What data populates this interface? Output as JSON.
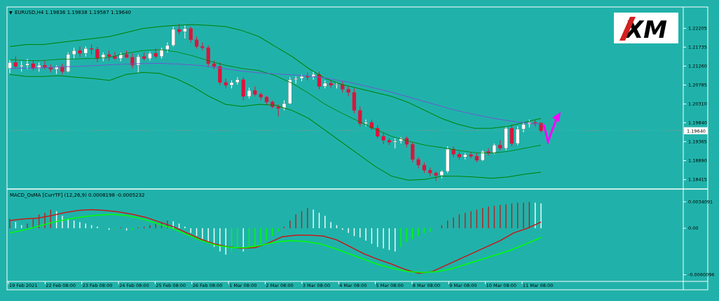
{
  "colors": {
    "background": "#20b2aa",
    "panel_border": "#ffffff",
    "bull_candle": "#ffffff",
    "bear_candle": "#dc143c",
    "bollinger": "#008000",
    "ma": "#6a5acd",
    "macd_line": "#ff0000",
    "signal_line": "#00ff00",
    "hist_up": "#ffffff",
    "hist_down": "#00ff00",
    "hist_up_red": "#b22222",
    "arrow": "#ff00ff"
  },
  "logo": {
    "text": "XM"
  },
  "chart_data": [
    {
      "type": "candlestick",
      "title": "EURUSD,H4  1.19836 1.19838 1.19587 1.19640",
      "y_ticks": [
        "1.22205",
        "1.21735",
        "1.21260",
        "1.20785",
        "1.20310",
        "1.19840",
        "1.19365",
        "1.18890",
        "1.18415"
      ],
      "y_tick_values": [
        1.22205,
        1.21735,
        1.2126,
        1.20785,
        1.2031,
        1.1984,
        1.19365,
        1.1889,
        1.18415
      ],
      "ylim": [
        1.1825,
        1.2253
      ],
      "current_price": "1.19640",
      "x_ticks": [
        "19 Feb 2021",
        "22 Feb 08:00",
        "23 Feb 08:00",
        "24 Feb 08:00",
        "25 Feb 08:00",
        "26 Feb 08:00",
        "1 Mar 08:00",
        "2 Mar 08:00",
        "3 Mar 08:00",
        "4 Mar 08:00",
        "5 Mar 08:00",
        "8 Mar 08:00",
        "9 Mar 08:00",
        "10 Mar 08:00",
        "11 Mar 08:00"
      ],
      "ohlc": [
        [
          1.212,
          1.2142,
          1.2108,
          1.2135
        ],
        [
          1.2135,
          1.215,
          1.212,
          1.2125
        ],
        [
          1.2125,
          1.2138,
          1.2112,
          1.2128
        ],
        [
          1.2128,
          1.2144,
          1.2118,
          1.2132
        ],
        [
          1.2132,
          1.214,
          1.2115,
          1.212
        ],
        [
          1.212,
          1.2135,
          1.2112,
          1.2128
        ],
        [
          1.2128,
          1.214,
          1.2118,
          1.2122
        ],
        [
          1.2122,
          1.213,
          1.211,
          1.2118
        ],
        [
          1.2118,
          1.2128,
          1.2106,
          1.2125
        ],
        [
          1.2125,
          1.2132,
          1.2105,
          1.2112
        ],
        [
          1.2112,
          1.216,
          1.211,
          1.2155
        ],
        [
          1.2155,
          1.2172,
          1.2145,
          1.2165
        ],
        [
          1.2165,
          1.2175,
          1.215,
          1.2158
        ],
        [
          1.2158,
          1.2175,
          1.215,
          1.217
        ],
        [
          1.217,
          1.218,
          1.2155,
          1.2168
        ],
        [
          1.2168,
          1.2175,
          1.2135,
          1.2145
        ],
        [
          1.2145,
          1.216,
          1.2138,
          1.2155
        ],
        [
          1.2155,
          1.2165,
          1.214,
          1.215
        ],
        [
          1.215,
          1.2162,
          1.2142,
          1.2145
        ],
        [
          1.2145,
          1.216,
          1.2138,
          1.2155
        ],
        [
          1.2155,
          1.2165,
          1.2145,
          1.2148
        ],
        [
          1.2148,
          1.2158,
          1.212,
          1.2128
        ],
        [
          1.2128,
          1.2155,
          1.211,
          1.215
        ],
        [
          1.215,
          1.216,
          1.214,
          1.2145
        ],
        [
          1.2145,
          1.2162,
          1.214,
          1.2158
        ],
        [
          1.2158,
          1.217,
          1.2145,
          1.215
        ],
        [
          1.215,
          1.2172,
          1.2145,
          1.2168
        ],
        [
          1.2168,
          1.2185,
          1.216,
          1.2178
        ],
        [
          1.2178,
          1.2225,
          1.2175,
          1.2218
        ],
        [
          1.2218,
          1.2232,
          1.2205,
          1.2212
        ],
        [
          1.2212,
          1.2228,
          1.2195,
          1.222
        ],
        [
          1.222,
          1.2225,
          1.2185,
          1.2192
        ],
        [
          1.2192,
          1.22,
          1.217,
          1.2175
        ],
        [
          1.2175,
          1.2185,
          1.2165,
          1.2172
        ],
        [
          1.2172,
          1.2178,
          1.2125,
          1.2132
        ],
        [
          1.2132,
          1.214,
          1.2118,
          1.2125
        ],
        [
          1.2125,
          1.2135,
          1.2078,
          1.2085
        ],
        [
          1.2085,
          1.2095,
          1.207,
          1.2078
        ],
        [
          1.2078,
          1.209,
          1.207,
          1.2085
        ],
        [
          1.2085,
          1.2098,
          1.208,
          1.2092
        ],
        [
          1.2092,
          1.2098,
          1.204,
          1.205
        ],
        [
          1.205,
          1.2072,
          1.2045,
          1.2065
        ],
        [
          1.2065,
          1.2075,
          1.205,
          1.2055
        ],
        [
          1.2055,
          1.206,
          1.204,
          1.2048
        ],
        [
          1.2048,
          1.2052,
          1.203,
          1.2036
        ],
        [
          1.2036,
          1.204,
          1.202,
          1.2024
        ],
        [
          1.2024,
          1.203,
          1.2,
          1.202
        ],
        [
          1.202,
          1.204,
          1.2015,
          1.2032
        ],
        [
          1.2032,
          1.2098,
          1.203,
          1.2092
        ],
        [
          1.2092,
          1.21,
          1.2082,
          1.2095
        ],
        [
          1.2095,
          1.2105,
          1.2088,
          1.21
        ],
        [
          1.21,
          1.211,
          1.209,
          1.2098
        ],
        [
          1.2098,
          1.2112,
          1.2092,
          1.2105
        ],
        [
          1.2105,
          1.2112,
          1.2068,
          1.2075
        ],
        [
          1.2075,
          1.209,
          1.207,
          1.2083
        ],
        [
          1.2083,
          1.209,
          1.2072,
          1.2078
        ],
        [
          1.2078,
          1.2085,
          1.207,
          1.208
        ],
        [
          1.208,
          1.2088,
          1.206,
          1.2068
        ],
        [
          1.2068,
          1.2075,
          1.205,
          1.206
        ],
        [
          1.206,
          1.207,
          1.2008,
          1.2015
        ],
        [
          1.2015,
          1.2025,
          1.1975,
          1.1982
        ],
        [
          1.1982,
          1.1992,
          1.1975,
          1.1985
        ],
        [
          1.1985,
          1.1992,
          1.1965,
          1.197
        ],
        [
          1.197,
          1.1978,
          1.1945,
          1.195
        ],
        [
          1.195,
          1.1958,
          1.193,
          1.194
        ],
        [
          1.194,
          1.1945,
          1.1928,
          1.1935
        ],
        [
          1.1935,
          1.1945,
          1.192,
          1.1938
        ],
        [
          1.1938,
          1.1948,
          1.1932,
          1.1945
        ],
        [
          1.1945,
          1.195,
          1.1922,
          1.193
        ],
        [
          1.193,
          1.1935,
          1.1885,
          1.1892
        ],
        [
          1.1892,
          1.1898,
          1.187,
          1.1878
        ],
        [
          1.1878,
          1.1885,
          1.1858,
          1.1865
        ],
        [
          1.1865,
          1.1872,
          1.185,
          1.1858
        ],
        [
          1.1858,
          1.1862,
          1.1838,
          1.1852
        ],
        [
          1.1852,
          1.1865,
          1.1845,
          1.1862
        ],
        [
          1.1862,
          1.1925,
          1.1858,
          1.1918
        ],
        [
          1.1918,
          1.1925,
          1.1898,
          1.1905
        ],
        [
          1.1905,
          1.1912,
          1.1892,
          1.1898
        ],
        [
          1.1898,
          1.1908,
          1.1892,
          1.1904
        ],
        [
          1.1904,
          1.191,
          1.1895,
          1.19
        ],
        [
          1.19,
          1.1908,
          1.1885,
          1.189
        ],
        [
          1.189,
          1.1915,
          1.1888,
          1.1912
        ],
        [
          1.1912,
          1.192,
          1.1902,
          1.1908
        ],
        [
          1.1908,
          1.1932,
          1.1905,
          1.1928
        ],
        [
          1.1928,
          1.194,
          1.1915,
          1.192
        ],
        [
          1.192,
          1.1975,
          1.1915,
          1.197
        ],
        [
          1.197,
          1.198,
          1.1925,
          1.1932
        ],
        [
          1.1932,
          1.1975,
          1.1928,
          1.1968
        ],
        [
          1.1968,
          1.1985,
          1.196,
          1.198
        ],
        [
          1.198,
          1.1992,
          1.1972,
          1.1985
        ],
        [
          1.1985,
          1.199,
          1.1975,
          1.1984
        ],
        [
          1.19836,
          1.19838,
          1.19587,
          1.1964
        ]
      ],
      "bb_upper": [
        1.2175,
        1.218,
        1.218,
        1.2185,
        1.219,
        1.2195,
        1.22,
        1.221,
        1.222,
        1.2225,
        1.2228,
        1.223,
        1.2228,
        1.2225,
        1.2215,
        1.22,
        1.2175,
        1.215,
        1.212,
        1.2095,
        1.208,
        1.207,
        1.206,
        1.205,
        1.2035,
        1.2015,
        1.1995,
        1.198,
        1.197,
        1.197,
        1.1975,
        1.1985,
        1.1995
      ],
      "bb_lower": [
        1.2105,
        1.21,
        1.21,
        1.2102,
        1.2098,
        1.2095,
        1.209,
        1.2105,
        1.211,
        1.2108,
        1.2095,
        1.2075,
        1.205,
        1.203,
        1.2025,
        1.203,
        1.2028,
        1.2015,
        1.1995,
        1.1965,
        1.1935,
        1.1905,
        1.1875,
        1.185,
        1.184,
        1.1842,
        1.185,
        1.185,
        1.1848,
        1.1845,
        1.1848,
        1.1855,
        1.186
      ],
      "bb_middle": [
        1.2142,
        1.214,
        1.214,
        1.2143,
        1.2144,
        1.2145,
        1.2148,
        1.2158,
        1.2165,
        1.2167,
        1.2162,
        1.2152,
        1.2139,
        1.2128,
        1.212,
        1.2115,
        1.2102,
        1.2083,
        1.2058,
        1.203,
        1.2008,
        1.1988,
        1.1968,
        1.195,
        1.1938,
        1.1928,
        1.1922,
        1.1915,
        1.1909,
        1.1908,
        1.1912,
        1.192,
        1.1928
      ],
      "ma_line": [
        1.212,
        1.2121,
        1.2123,
        1.2125,
        1.2127,
        1.213,
        1.2132,
        1.2133,
        1.2131,
        1.2127,
        1.212,
        1.2113,
        1.2108,
        1.2105,
        1.2102,
        1.2095,
        1.2085,
        1.2073,
        1.206,
        1.2045,
        1.203,
        1.2015,
        1.2003,
        1.1993,
        1.1985,
        1.198
      ]
    },
    {
      "type": "histogram_lines",
      "title": "MACD_OsMA [CurrTF] (12,26,9) 0.0008198 -0.0005232",
      "y_ticks": [
        "0.0034091",
        "0.00",
        "-0.0060096"
      ],
      "y_tick_values": [
        0.0034091,
        0.0,
        -0.0060096
      ],
      "ylim": [
        -0.0065,
        0.0038
      ],
      "histogram": [
        0.0012,
        0.0008,
        0.0004,
        0.0006,
        0.0012,
        0.0018,
        0.002,
        0.0024,
        0.0022,
        0.0016,
        0.0012,
        0.001,
        0.0008,
        0.0006,
        0.0004,
        0.0002,
        0.0,
        -0.0002,
        -0.0001,
        0.0001,
        -0.0003,
        -0.0002,
        0.0001,
        0.0002,
        0.0004,
        0.0006,
        0.0008,
        0.001,
        0.0009,
        0.0006,
        0.0002,
        -0.0006,
        -0.001,
        -0.0014,
        -0.0018,
        -0.0024,
        -0.003,
        -0.0034,
        -0.003,
        -0.0026,
        -0.003,
        -0.0026,
        -0.0024,
        -0.002,
        -0.0016,
        -0.001,
        -0.0004,
        0.0002,
        0.001,
        0.0018,
        0.0022,
        0.0026,
        0.0024,
        0.002,
        0.0016,
        0.0008,
        0.0004,
        -0.0002,
        -0.0006,
        -0.001,
        -0.0012,
        -0.0016,
        -0.002,
        -0.0024,
        -0.0026,
        -0.0028,
        -0.003,
        -0.0024,
        -0.0018,
        -0.0014,
        -0.001,
        -0.0006,
        -0.0004,
        0.0,
        0.0004,
        0.001,
        0.0014,
        0.0018,
        0.002,
        0.0022,
        0.0024,
        0.0026,
        0.0028,
        0.0029,
        0.003,
        0.0031,
        0.0032,
        0.0033,
        0.0033,
        0.0034,
        0.0033,
        0.0032
      ],
      "macd_line": [
        0.001,
        0.0012,
        0.0013,
        0.0016,
        0.002,
        0.0023,
        0.0024,
        0.0023,
        0.0021,
        0.0018,
        0.0014,
        0.0008,
        0.0002,
        -0.0006,
        -0.0014,
        -0.002,
        -0.0024,
        -0.0026,
        -0.0025,
        -0.0019,
        -0.0011,
        -0.0009,
        -0.0009,
        -0.001,
        -0.0015,
        -0.0024,
        -0.0033,
        -0.004,
        -0.0046,
        -0.0053,
        -0.0058,
        -0.0056,
        -0.0048,
        -0.004,
        -0.0032,
        -0.0024,
        -0.0016,
        -0.0006,
        0.0,
        0.0008
      ],
      "signal_line": [
        -0.0006,
        -0.0002,
        0.0003,
        0.0008,
        0.0012,
        0.0015,
        0.0017,
        0.0018,
        0.0016,
        0.0012,
        0.0006,
        0.0,
        -0.0008,
        -0.0016,
        -0.0022,
        -0.0025,
        -0.0025,
        -0.0022,
        -0.0018,
        -0.0016,
        -0.0017,
        -0.002,
        -0.0026,
        -0.0033,
        -0.004,
        -0.0047,
        -0.0052,
        -0.0056,
        -0.0057,
        -0.0056,
        -0.0052,
        -0.0046,
        -0.004,
        -0.0034,
        -0.0028,
        -0.002,
        -0.0012
      ]
    }
  ]
}
